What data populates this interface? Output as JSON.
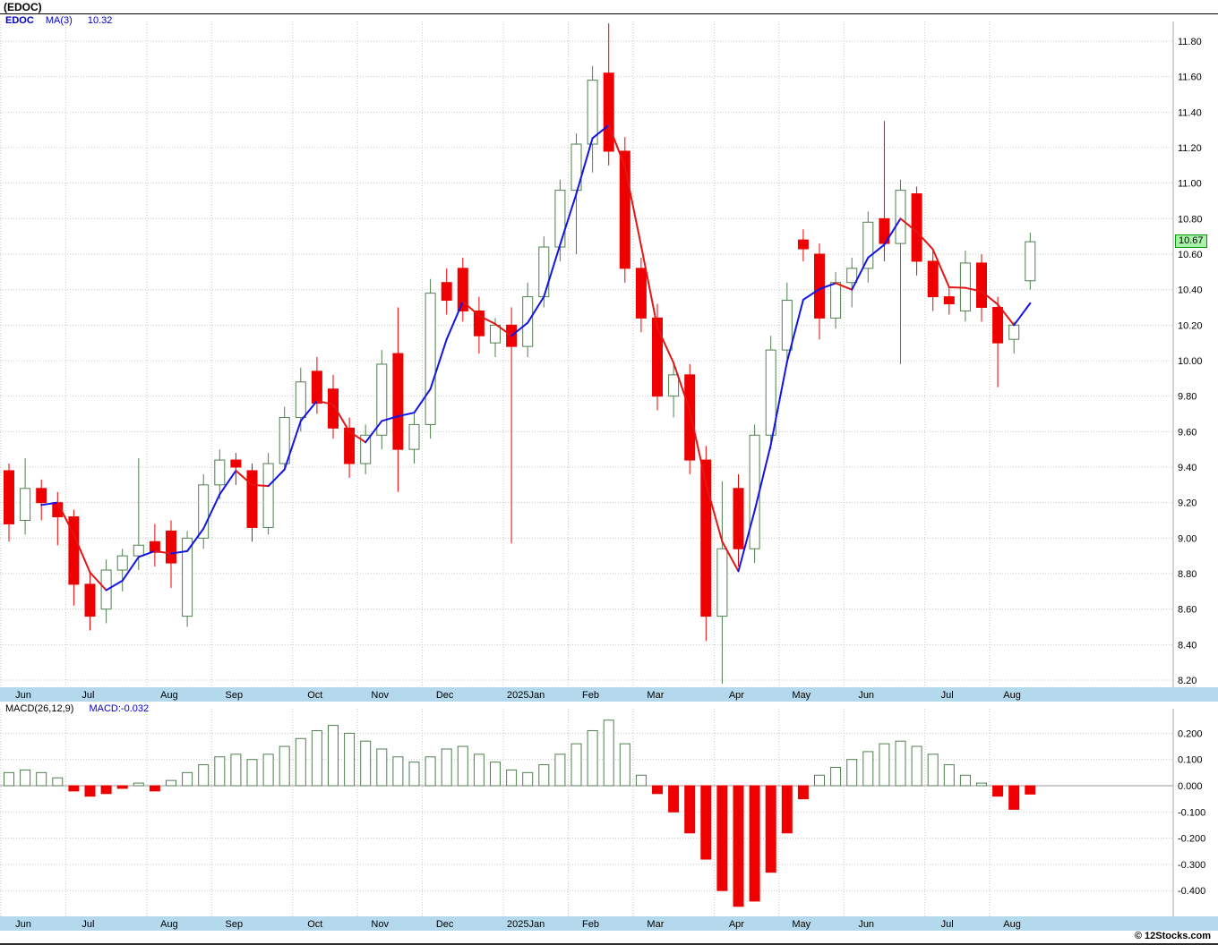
{
  "window": {
    "title": "(EDOC)"
  },
  "legend": {
    "symbol": "EDOC",
    "ma_label": "MA(3)",
    "ma_value": "10.32"
  },
  "macd_legend": {
    "label": "MACD(26,12,9)",
    "value": "MACD:-0.032"
  },
  "price_tag": "10.67",
  "footer": {
    "credit": "© 12Stocks.com"
  },
  "colors": {
    "up": "#4f7f4f",
    "down": "#ee0000",
    "ma_up": "#1414e6",
    "ma_down": "#e61414",
    "grid": "#c8c8c8",
    "band": "#b4d9ec",
    "tag_bg": "#a9f2a9",
    "tag_border": "#009900",
    "axis_edge": "#aaaaaa"
  },
  "chart_data": [
    {
      "type": "candlestick",
      "title": "(EDOC)",
      "timeframe": "weekly",
      "ylabel": "Price",
      "ylim": [
        8.1,
        11.95
      ],
      "ytick_step": 0.2,
      "yticks": [
        11.8,
        11.6,
        11.4,
        11.2,
        11.0,
        10.8,
        10.6,
        10.4,
        10.2,
        10.0,
        9.8,
        9.6,
        9.4,
        9.2,
        9.0,
        8.8,
        8.6,
        8.4,
        8.2
      ],
      "ma_period": 3,
      "last_close": 10.67,
      "months": [
        {
          "label": "Jun",
          "start": 0
        },
        {
          "label": "Jul",
          "start": 4
        },
        {
          "label": "Aug",
          "start": 9
        },
        {
          "label": "Sep",
          "start": 13
        },
        {
          "label": "Oct",
          "start": 18
        },
        {
          "label": "Nov",
          "start": 22
        },
        {
          "label": "Dec",
          "start": 26
        },
        {
          "label": "2025Jan",
          "start": 31
        },
        {
          "label": "Feb",
          "start": 35
        },
        {
          "label": "Mar",
          "start": 39
        },
        {
          "label": "Apr",
          "start": 44
        },
        {
          "label": "May",
          "start": 48
        },
        {
          "label": "Jun",
          "start": 52
        },
        {
          "label": "Jul",
          "start": 57
        },
        {
          "label": "Aug",
          "start": 61
        }
      ],
      "candles": [
        {
          "o": 9.38,
          "h": 9.42,
          "l": 8.98,
          "c": 9.08
        },
        {
          "o": 9.1,
          "h": 9.45,
          "l": 9.02,
          "c": 9.28
        },
        {
          "o": 9.28,
          "h": 9.33,
          "l": 9.1,
          "c": 9.2
        },
        {
          "o": 9.2,
          "h": 9.26,
          "l": 8.96,
          "c": 9.12
        },
        {
          "o": 9.12,
          "h": 9.16,
          "l": 8.62,
          "c": 8.74
        },
        {
          "o": 8.74,
          "h": 8.8,
          "l": 8.48,
          "c": 8.56
        },
        {
          "o": 8.6,
          "h": 8.88,
          "l": 8.52,
          "c": 8.82
        },
        {
          "o": 8.82,
          "h": 8.94,
          "l": 8.7,
          "c": 8.9
        },
        {
          "o": 8.9,
          "h": 9.45,
          "l": 8.82,
          "c": 8.96
        },
        {
          "o": 8.98,
          "h": 9.08,
          "l": 8.84,
          "c": 8.92
        },
        {
          "o": 9.04,
          "h": 9.1,
          "l": 8.72,
          "c": 8.86
        },
        {
          "o": 8.56,
          "h": 9.04,
          "l": 8.5,
          "c": 9.0
        },
        {
          "o": 9.0,
          "h": 9.36,
          "l": 8.94,
          "c": 9.3
        },
        {
          "o": 9.3,
          "h": 9.5,
          "l": 9.22,
          "c": 9.44
        },
        {
          "o": 9.44,
          "h": 9.48,
          "l": 9.3,
          "c": 9.4
        },
        {
          "o": 9.38,
          "h": 9.42,
          "l": 8.98,
          "c": 9.06
        },
        {
          "o": 9.06,
          "h": 9.48,
          "l": 9.02,
          "c": 9.42
        },
        {
          "o": 9.42,
          "h": 9.74,
          "l": 9.38,
          "c": 9.68
        },
        {
          "o": 9.68,
          "h": 9.96,
          "l": 9.6,
          "c": 9.88
        },
        {
          "o": 9.94,
          "h": 10.02,
          "l": 9.7,
          "c": 9.76
        },
        {
          "o": 9.84,
          "h": 9.92,
          "l": 9.56,
          "c": 9.62
        },
        {
          "o": 9.62,
          "h": 9.68,
          "l": 9.34,
          "c": 9.42
        },
        {
          "o": 9.42,
          "h": 9.64,
          "l": 9.36,
          "c": 9.58
        },
        {
          "o": 9.58,
          "h": 10.06,
          "l": 9.5,
          "c": 9.98
        },
        {
          "o": 10.04,
          "h": 10.3,
          "l": 9.26,
          "c": 9.5
        },
        {
          "o": 9.5,
          "h": 9.7,
          "l": 9.42,
          "c": 9.64
        },
        {
          "o": 9.64,
          "h": 10.46,
          "l": 9.56,
          "c": 10.38
        },
        {
          "o": 10.44,
          "h": 10.52,
          "l": 10.26,
          "c": 10.34
        },
        {
          "o": 10.52,
          "h": 10.58,
          "l": 10.22,
          "c": 10.28
        },
        {
          "o": 10.28,
          "h": 10.36,
          "l": 10.04,
          "c": 10.14
        },
        {
          "o": 10.1,
          "h": 10.24,
          "l": 10.02,
          "c": 10.2
        },
        {
          "o": 10.2,
          "h": 10.3,
          "l": 8.97,
          "c": 10.08
        },
        {
          "o": 10.08,
          "h": 10.44,
          "l": 10.02,
          "c": 10.36
        },
        {
          "o": 10.36,
          "h": 10.7,
          "l": 10.3,
          "c": 10.64
        },
        {
          "o": 10.64,
          "h": 11.02,
          "l": 10.56,
          "c": 10.96
        },
        {
          "o": 10.96,
          "h": 11.28,
          "l": 10.6,
          "c": 11.22
        },
        {
          "o": 11.22,
          "h": 11.66,
          "l": 11.06,
          "c": 11.58
        },
        {
          "o": 11.62,
          "h": 11.9,
          "l": 11.1,
          "c": 11.18
        },
        {
          "o": 11.18,
          "h": 11.26,
          "l": 10.44,
          "c": 10.52
        },
        {
          "o": 10.52,
          "h": 10.58,
          "l": 10.16,
          "c": 10.24
        },
        {
          "o": 10.24,
          "h": 10.32,
          "l": 9.72,
          "c": 9.8
        },
        {
          "o": 9.8,
          "h": 9.98,
          "l": 9.68,
          "c": 9.92
        },
        {
          "o": 9.92,
          "h": 9.98,
          "l": 9.36,
          "c": 9.44
        },
        {
          "o": 9.44,
          "h": 9.52,
          "l": 8.42,
          "c": 8.56
        },
        {
          "o": 8.56,
          "h": 9.32,
          "l": 8.18,
          "c": 8.94
        },
        {
          "o": 9.28,
          "h": 9.36,
          "l": 8.84,
          "c": 8.94
        },
        {
          "o": 8.94,
          "h": 9.64,
          "l": 8.86,
          "c": 9.58
        },
        {
          "o": 9.58,
          "h": 10.14,
          "l": 9.5,
          "c": 10.06
        },
        {
          "o": 10.06,
          "h": 10.44,
          "l": 9.98,
          "c": 10.34
        },
        {
          "o": 10.68,
          "h": 10.74,
          "l": 10.56,
          "c": 10.63
        },
        {
          "o": 10.6,
          "h": 10.66,
          "l": 10.12,
          "c": 10.24
        },
        {
          "o": 10.24,
          "h": 10.5,
          "l": 10.18,
          "c": 10.44
        },
        {
          "o": 10.44,
          "h": 10.58,
          "l": 10.3,
          "c": 10.52
        },
        {
          "o": 10.52,
          "h": 10.84,
          "l": 10.44,
          "c": 10.78
        },
        {
          "o": 10.8,
          "h": 11.35,
          "l": 10.56,
          "c": 10.66
        },
        {
          "o": 10.66,
          "h": 11.02,
          "l": 9.98,
          "c": 10.96
        },
        {
          "o": 10.94,
          "h": 10.98,
          "l": 10.48,
          "c": 10.56
        },
        {
          "o": 10.56,
          "h": 10.62,
          "l": 10.28,
          "c": 10.36
        },
        {
          "o": 10.36,
          "h": 10.42,
          "l": 10.26,
          "c": 10.32
        },
        {
          "o": 10.28,
          "h": 10.62,
          "l": 10.22,
          "c": 10.55
        },
        {
          "o": 10.55,
          "h": 10.6,
          "l": 10.22,
          "c": 10.3
        },
        {
          "o": 10.3,
          "h": 10.36,
          "l": 9.85,
          "c": 10.1
        },
        {
          "o": 10.12,
          "h": 10.22,
          "l": 10.04,
          "c": 10.2
        },
        {
          "o": 10.45,
          "h": 10.72,
          "l": 10.4,
          "c": 10.67
        }
      ]
    },
    {
      "type": "bar",
      "title": "MACD(26,12,9)",
      "last_value": -0.032,
      "ylim": [
        -0.5,
        0.3
      ],
      "yticks": [
        0.2,
        0.1,
        0.0,
        -0.1,
        -0.2,
        -0.3,
        -0.4
      ],
      "values": [
        0.05,
        0.06,
        0.05,
        0.03,
        -0.02,
        -0.04,
        -0.03,
        -0.01,
        0.01,
        -0.02,
        0.02,
        0.05,
        0.08,
        0.11,
        0.12,
        0.1,
        0.12,
        0.15,
        0.18,
        0.21,
        0.23,
        0.2,
        0.17,
        0.14,
        0.11,
        0.09,
        0.11,
        0.14,
        0.15,
        0.12,
        0.09,
        0.06,
        0.05,
        0.08,
        0.12,
        0.16,
        0.21,
        0.25,
        0.16,
        0.04,
        -0.03,
        -0.1,
        -0.18,
        -0.28,
        -0.4,
        -0.46,
        -0.44,
        -0.33,
        -0.18,
        -0.05,
        0.04,
        0.07,
        0.1,
        0.13,
        0.16,
        0.17,
        0.15,
        0.12,
        0.08,
        0.04,
        0.01,
        -0.04,
        -0.09,
        -0.032
      ]
    }
  ]
}
